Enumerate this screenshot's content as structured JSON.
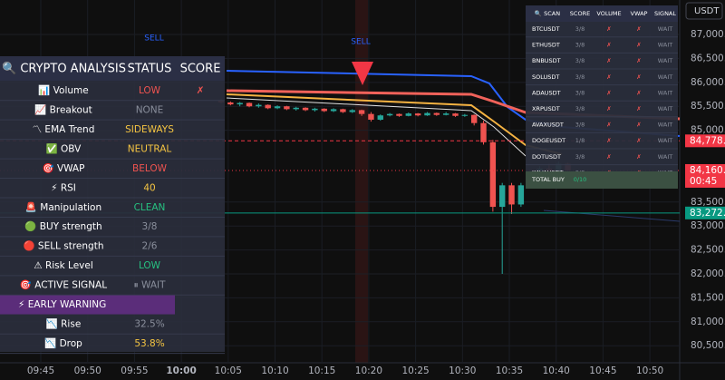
{
  "header": {
    "currency": "USDT"
  },
  "price_axis": {
    "ylim": [
      80144,
      87720
    ],
    "ticks": [
      {
        "value": 87000,
        "label": "87,000.0"
      },
      {
        "value": 86500,
        "label": "86,500.0"
      },
      {
        "value": 86000,
        "label": "86,000.0"
      },
      {
        "value": 85500,
        "label": "85,500.0"
      },
      {
        "value": 85000,
        "label": "85,000.0"
      },
      {
        "value": 83500,
        "label": "83,500.0"
      },
      {
        "value": 83000,
        "label": "83,000.0"
      },
      {
        "value": 82500,
        "label": "82,500.0"
      },
      {
        "value": 82000,
        "label": "82,000.0"
      },
      {
        "value": 81500,
        "label": "81,500.0"
      },
      {
        "value": 81000,
        "label": "81,000.0"
      },
      {
        "value": 80500,
        "label": "80,500.0"
      }
    ]
  },
  "time_axis": [
    "09:45",
    "09:50",
    "09:55",
    "10:00",
    "10:05",
    "10:10",
    "10:15",
    "10:20",
    "10:25",
    "10:30",
    "10:35",
    "10:40",
    "10:45",
    "10:50"
  ],
  "signals": [
    "SELL",
    "SELL"
  ],
  "price_labels": [
    {
      "value": 84778.7,
      "label": "84,778.7",
      "color": "#f23645"
    },
    {
      "value": 84160,
      "label": "84,160.0",
      "sub": "00:45",
      "color": "#f23645"
    },
    {
      "value": 83272.2,
      "label": "83,272.2",
      "color": "#089981"
    }
  ],
  "candles": [
    [
      85620,
      85650,
      85560,
      85580
    ],
    [
      85580,
      85600,
      85520,
      85540
    ],
    [
      85540,
      85590,
      85500,
      85570
    ],
    [
      85570,
      85580,
      85480,
      85500
    ],
    [
      85500,
      85560,
      85470,
      85530
    ],
    [
      85530,
      85540,
      85440,
      85460
    ],
    [
      85460,
      85520,
      85440,
      85500
    ],
    [
      85500,
      85510,
      85420,
      85440
    ],
    [
      85440,
      85490,
      85410,
      85470
    ],
    [
      85470,
      85480,
      85400,
      85420
    ],
    [
      85420,
      85470,
      85390,
      85450
    ],
    [
      85450,
      85460,
      85380,
      85400
    ],
    [
      85400,
      85460,
      85380,
      85440
    ],
    [
      85440,
      85450,
      85360,
      85380
    ],
    [
      85380,
      85440,
      85360,
      85420
    ],
    [
      85420,
      85430,
      85300,
      85340
    ],
    [
      85340,
      85380,
      85180,
      85220
    ],
    [
      85220,
      85330,
      85200,
      85310
    ],
    [
      85310,
      85360,
      85290,
      85340
    ],
    [
      85340,
      85350,
      85280,
      85300
    ],
    [
      85300,
      85370,
      85290,
      85350
    ],
    [
      85350,
      85360,
      85290,
      85310
    ],
    [
      85310,
      85380,
      85300,
      85360
    ],
    [
      85360,
      85370,
      85300,
      85320
    ],
    [
      85320,
      85380,
      85310,
      85350
    ],
    [
      85350,
      85360,
      85280,
      85300
    ],
    [
      85300,
      85340,
      85280,
      85320
    ],
    [
      85320,
      85330,
      85100,
      85150
    ],
    [
      85150,
      85200,
      84700,
      84750
    ],
    [
      84750,
      84800,
      83300,
      83400
    ],
    [
      83400,
      83900,
      82000,
      83850
    ],
    [
      83850,
      83900,
      83250,
      83450
    ],
    [
      83450,
      83900,
      83400,
      83850
    ],
    [
      83850,
      84050,
      83800,
      84000
    ],
    [
      84000,
      84250,
      83950,
      84200
    ],
    [
      84200,
      84300,
      84050,
      84100
    ],
    [
      84100,
      84350,
      84050,
      84300
    ],
    [
      84300,
      84320,
      84150,
      84160
    ]
  ],
  "analysis": {
    "title": "🔍 CRYPTO ANALYSIS",
    "columns": [
      "STATUS",
      "SCORE"
    ],
    "rows": [
      {
        "label": "📊 Volume",
        "status": "LOW",
        "score": "✗",
        "color": "#ef5350"
      },
      {
        "label": "📈 Breakout",
        "status": "NONE",
        "color": "#8a8f9c"
      },
      {
        "label": "〽 EMA Trend",
        "status": "SIDEWAYS",
        "color": "#f5c542"
      },
      {
        "label": "✅ OBV",
        "status": "NEUTRAL",
        "color": "#f5c542"
      },
      {
        "label": "🎯 VWAP",
        "status": "BELOW",
        "color": "#ef5350"
      },
      {
        "label": "⚡ RSI",
        "status": "40",
        "color": "#f5c542"
      },
      {
        "label": "🚨 Manipulation",
        "status": "CLEAN",
        "color": "#26c281"
      },
      {
        "label": "🟢 BUY strength",
        "status": "3/8",
        "color": "#8a8f9c"
      },
      {
        "label": "🔴 SELL strength",
        "status": "2/6",
        "color": "#8a8f9c"
      },
      {
        "label": "⚠ Risk Level",
        "status": "LOW",
        "color": "#26c281"
      },
      {
        "label": "🎯 ACTIVE SIGNAL",
        "status": "⏸ WAIT",
        "color": "#8a8f9c"
      },
      {
        "label": "⚡ EARLY WARNING",
        "highlight": true
      },
      {
        "label": "📉 Rise",
        "status": "32.5%",
        "color": "#8a8f9c"
      },
      {
        "label": "📉 Drop",
        "status": "53.8%",
        "color": "#f5c542"
      }
    ]
  },
  "scanner": {
    "columns": [
      "🔍 SCAN",
      "SCORE",
      "VOLUME",
      "VWAP",
      "SIGNAL"
    ],
    "rows": [
      [
        "BTCUSDT",
        "3/8",
        "✗",
        "✗",
        "WAIT"
      ],
      [
        "ETHUSDT",
        "3/8",
        "✗",
        "✗",
        "WAIT"
      ],
      [
        "BNBUSDT",
        "3/8",
        "✗",
        "✗",
        "WAIT"
      ],
      [
        "SOLUSDT",
        "3/8",
        "✗",
        "✗",
        "WAIT"
      ],
      [
        "ADAUSDT",
        "3/8",
        "✗",
        "✗",
        "WAIT"
      ],
      [
        "XRPUSDT",
        "3/8",
        "✗",
        "✗",
        "WAIT"
      ],
      [
        "AVAXUSDT",
        "3/8",
        "✗",
        "✗",
        "WAIT"
      ],
      [
        "DOGEUSDT",
        "1/8",
        "✗",
        "✗",
        "WAIT"
      ],
      [
        "DOTUSDT",
        "3/8",
        "✗",
        "✗",
        "WAIT"
      ],
      [
        "KAVAUSDT",
        "3/8",
        "✗",
        "✗",
        "WAIT"
      ]
    ],
    "total": [
      "TOTAL BUY",
      "0/10"
    ]
  }
}
